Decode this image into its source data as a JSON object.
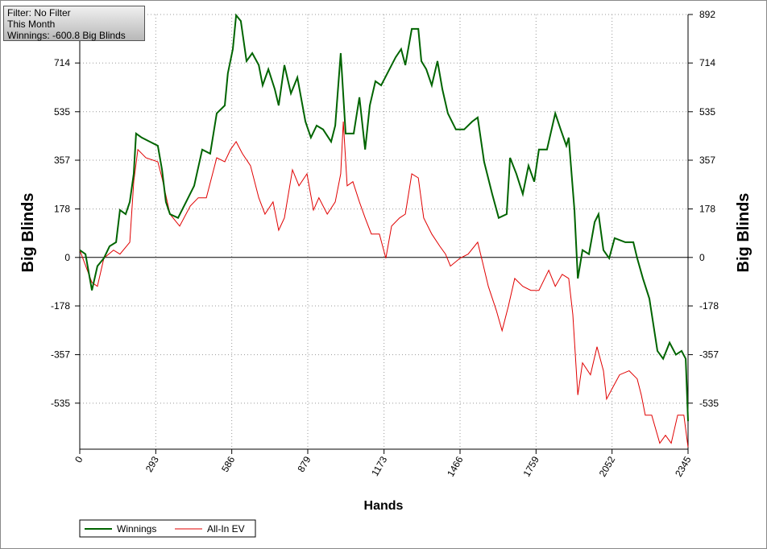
{
  "chart_data": {
    "type": "line",
    "annotations": [
      "Filter: No Filter",
      "This Month",
      "Winnings: -600.8 Big Blinds"
    ],
    "x_label": "Hands",
    "y_label": "Big Blinds",
    "xlim": [
      0,
      2345
    ],
    "xticks": [
      0,
      293,
      586,
      879,
      1173,
      1466,
      1759,
      2052,
      2345
    ],
    "ylim": [
      -704,
      892
    ],
    "yticks": [
      892,
      714,
      535,
      357,
      178,
      0,
      -178,
      -357,
      -535
    ],
    "grid": true,
    "legend": "bottom-left",
    "series": [
      {
        "name": "Winnings",
        "color": "#006400",
        "x": [
          0,
          22,
          47,
          68,
          93,
          115,
          140,
          155,
          177,
          193,
          208,
          217,
          239,
          270,
          301,
          317,
          332,
          348,
          379,
          410,
          441,
          472,
          503,
          528,
          559,
          571,
          590,
          603,
          621,
          643,
          665,
          690,
          705,
          727,
          752,
          767,
          789,
          814,
          839,
          870,
          891,
          913,
          938,
          969,
          985,
          1006,
          1025,
          1056,
          1078,
          1100,
          1118,
          1140,
          1162,
          1186,
          1218,
          1239,
          1255,
          1280,
          1305,
          1317,
          1336,
          1357,
          1379,
          1398,
          1419,
          1450,
          1482,
          1513,
          1534,
          1559,
          1590,
          1615,
          1646,
          1659,
          1683,
          1708,
          1730,
          1752,
          1770,
          1801,
          1833,
          1854,
          1876,
          1885,
          1907,
          1920,
          1938,
          1963,
          1985,
          2000,
          2019,
          2041,
          2062,
          2103,
          2134,
          2149,
          2171,
          2196,
          2227,
          2249,
          2274,
          2298,
          2320,
          2336,
          2345
        ],
        "values": [
          27,
          12,
          -121,
          -32,
          -3,
          41,
          56,
          174,
          159,
          204,
          307,
          455,
          440,
          425,
          410,
          322,
          204,
          159,
          145,
          204,
          263,
          396,
          381,
          529,
          558,
          676,
          765,
          889,
          868,
          721,
          750,
          706,
          632,
          691,
          617,
          558,
          706,
          602,
          661,
          499,
          440,
          484,
          470,
          425,
          484,
          750,
          455,
          455,
          588,
          396,
          558,
          647,
          632,
          676,
          735,
          765,
          706,
          839,
          839,
          721,
          691,
          632,
          721,
          617,
          529,
          470,
          470,
          499,
          514,
          351,
          233,
          145,
          159,
          366,
          307,
          233,
          337,
          278,
          396,
          396,
          529,
          470,
          410,
          440,
          174,
          -77,
          27,
          12,
          130,
          159,
          27,
          -3,
          71,
          56,
          56,
          -3,
          -77,
          -151,
          -343,
          -372,
          -313,
          -357,
          -343,
          -372,
          -601
        ]
      },
      {
        "name": "All-In EV",
        "color": "#e00000",
        "x": [
          0,
          47,
          68,
          93,
          130,
          155,
          193,
          208,
          224,
          255,
          301,
          317,
          348,
          385,
          426,
          457,
          488,
          528,
          559,
          581,
          603,
          627,
          658,
          690,
          714,
          745,
          767,
          789,
          820,
          845,
          876,
          901,
          922,
          954,
          985,
          1006,
          1016,
          1031,
          1053,
          1078,
          1100,
          1124,
          1155,
          1180,
          1202,
          1233,
          1255,
          1280,
          1305,
          1326,
          1357,
          1388,
          1410,
          1429,
          1466,
          1497,
          1534,
          1553,
          1575,
          1606,
          1628,
          1652,
          1677,
          1708,
          1739,
          1770,
          1808,
          1833,
          1860,
          1885,
          1901,
          1920,
          1938,
          1969,
          1994,
          2019,
          2031,
          2056,
          2081,
          2118,
          2149,
          2165,
          2180,
          2205,
          2236,
          2258,
          2280,
          2305,
          2329,
          2345
        ],
        "values": [
          27,
          -92,
          -106,
          -3,
          27,
          12,
          56,
          278,
          396,
          366,
          351,
          292,
          159,
          115,
          189,
          219,
          219,
          366,
          351,
          396,
          425,
          381,
          337,
          219,
          159,
          204,
          100,
          145,
          322,
          263,
          307,
          174,
          219,
          159,
          204,
          307,
          499,
          263,
          278,
          204,
          145,
          86,
          86,
          -3,
          115,
          145,
          159,
          307,
          292,
          145,
          86,
          41,
          12,
          -32,
          -3,
          12,
          56,
          -18,
          -106,
          -195,
          -269,
          -180,
          -77,
          -106,
          -121,
          -121,
          -47,
          -106,
          -62,
          -77,
          -210,
          -505,
          -387,
          -431,
          -328,
          -416,
          -520,
          -475,
          -431,
          -416,
          -446,
          -505,
          -579,
          -579,
          -682,
          -653,
          -682,
          -579,
          -579,
          -697
        ]
      }
    ]
  }
}
